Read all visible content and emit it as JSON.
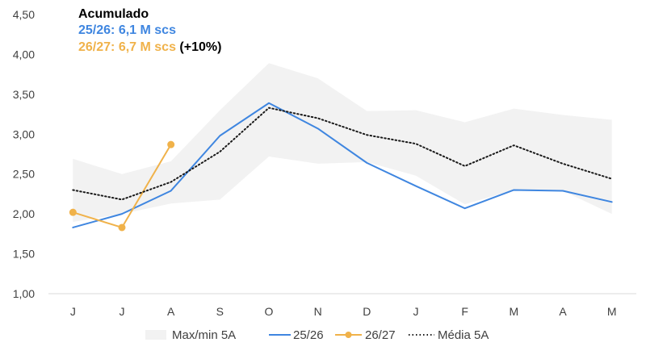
{
  "chart_data": {
    "type": "line",
    "categories": [
      "J",
      "J",
      "A",
      "S",
      "O",
      "N",
      "D",
      "J",
      "F",
      "M",
      "A",
      "M"
    ],
    "y_ticks": [
      "1,00",
      "1,50",
      "2,00",
      "2,50",
      "3,00",
      "3,50",
      "4,00",
      "4,50"
    ],
    "ylim": [
      1.0,
      4.5
    ],
    "grid": false,
    "legend_position": "bottom",
    "band": {
      "name": "Max/min 5A",
      "color": "#f2f2f2",
      "max": [
        2.69,
        2.5,
        2.66,
        3.3,
        3.89,
        3.7,
        3.29,
        3.3,
        3.15,
        3.32,
        3.24,
        3.18
      ],
      "min": [
        1.9,
        2.0,
        2.13,
        2.18,
        2.72,
        2.63,
        2.65,
        2.48,
        2.12,
        2.3,
        2.29,
        2.0
      ]
    },
    "series": [
      {
        "name": "25/26",
        "color": "#3f86e0",
        "style": "solid",
        "values": [
          1.83,
          2.0,
          2.29,
          2.98,
          3.39,
          3.07,
          2.64,
          2.35,
          2.07,
          2.3,
          2.29,
          2.15
        ]
      },
      {
        "name": "26/27",
        "color": "#f0b24a",
        "style": "solid-markers",
        "values": [
          2.02,
          1.83,
          2.87,
          null,
          null,
          null,
          null,
          null,
          null,
          null,
          null,
          null
        ]
      },
      {
        "name": "Média 5A",
        "color": "#1a1a1a",
        "style": "dotted",
        "values": [
          2.3,
          2.18,
          2.4,
          2.78,
          3.33,
          3.2,
          2.99,
          2.88,
          2.6,
          2.86,
          2.63,
          2.44
        ]
      }
    ],
    "annotation": {
      "title": "Acumulado",
      "line1": "25/26: 6,1 M scs",
      "line2": "26/27: 6,7 M scs",
      "line2_suffix": "(+10%)",
      "title_color": "#000000",
      "line1_color": "#3f86e0",
      "line2_color": "#f0b24a"
    }
  }
}
